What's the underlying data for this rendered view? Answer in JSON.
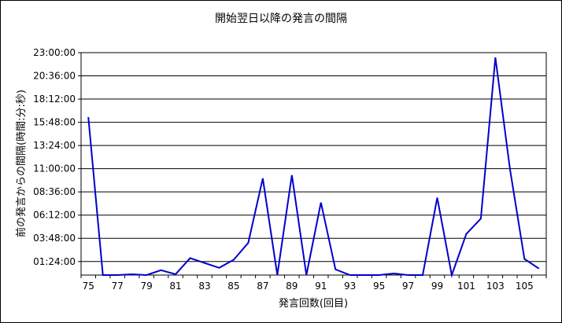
{
  "chart_data": {
    "type": "line",
    "title": "開始翌日以降の発言の間隔",
    "xlabel": "発言回数(回目)",
    "ylabel": "前の発言からの間隔(時間:分:秒)",
    "x_tick_labels": [
      "75",
      "77",
      "79",
      "81",
      "83",
      "85",
      "87",
      "89",
      "91",
      "93",
      "95",
      "97",
      "99",
      "101",
      "103",
      "105"
    ],
    "y_tick_labels": [
      "01:24:00",
      "03:48:00",
      "06:12:00",
      "08:36:00",
      "11:00:00",
      "13:24:00",
      "15:48:00",
      "18:12:00",
      "20:36:00",
      "23:00:00"
    ],
    "ylim": [
      "00:00:00",
      "23:00:00"
    ],
    "grid": "horizontal",
    "line_color": "#0000cc",
    "x": [
      75,
      76,
      77,
      78,
      79,
      80,
      81,
      82,
      83,
      84,
      85,
      86,
      87,
      88,
      89,
      90,
      91,
      92,
      93,
      94,
      95,
      96,
      97,
      98,
      99,
      100,
      101,
      102,
      103,
      104,
      105,
      106
    ],
    "y": [
      "16:20",
      "00:00",
      "00:00",
      "00:05",
      "00:00",
      "00:30",
      "00:05",
      "01:45",
      "01:15",
      "00:45",
      "01:35",
      "03:20",
      "10:00",
      "00:00",
      "10:20",
      "00:00",
      "07:30",
      "00:35",
      "00:00",
      "00:00",
      "00:00",
      "00:10",
      "00:00",
      "00:00",
      "08:00",
      "00:00",
      "04:15",
      "05:50",
      "22:30",
      "11:00",
      "01:40",
      "00:40"
    ]
  }
}
